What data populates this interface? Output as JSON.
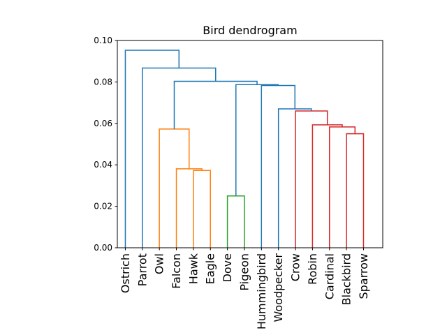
{
  "chart_data": {
    "type": "dendrogram",
    "title": "Bird dendrogram",
    "xlabel": "",
    "ylabel": "",
    "ylim": [
      0,
      0.1
    ],
    "yticks": [
      "0.00",
      "0.02",
      "0.04",
      "0.06",
      "0.08",
      "0.10"
    ],
    "grid": false,
    "leaves": [
      "Ostrich",
      "Parrot",
      "Owl",
      "Falcon",
      "Hawk",
      "Eagle",
      "Dove",
      "Pigeon",
      "Hummingbird",
      "Woodpecker",
      "Crow",
      "Robin",
      "Cardinal",
      "Blackbird",
      "Sparrow"
    ],
    "colors": {
      "above_threshold": "#1f77b4",
      "cluster_orange": "#ff7f0e",
      "cluster_green": "#2ca02c",
      "cluster_red": "#d62728"
    },
    "merges": [
      {
        "left": "Hawk",
        "right": "Eagle",
        "height": 0.0373,
        "color": "cluster_orange"
      },
      {
        "left": "Falcon",
        "right": "Hawk+Eagle",
        "height": 0.0381,
        "color": "cluster_orange"
      },
      {
        "left": "Owl",
        "right": "Falcon+Hawk+Eagle",
        "height": 0.0573,
        "color": "cluster_orange"
      },
      {
        "left": "Dove",
        "right": "Pigeon",
        "height": 0.025,
        "color": "cluster_green"
      },
      {
        "left": "Blackbird",
        "right": "Sparrow",
        "height": 0.055,
        "color": "cluster_red"
      },
      {
        "left": "Cardinal",
        "right": "Blackbird+Sparrow",
        "height": 0.0583,
        "color": "cluster_red"
      },
      {
        "left": "Robin",
        "right": "Cardinal+Blackbird+Sparrow",
        "height": 0.0593,
        "color": "cluster_red"
      },
      {
        "left": "Crow",
        "right": "Robin+Cardinal+Blackbird+Sparrow",
        "height": 0.066,
        "color": "cluster_red"
      },
      {
        "left": "Woodpecker",
        "right": "Crow cluster",
        "height": 0.067,
        "color": "above_threshold"
      },
      {
        "left": "Hummingbird",
        "right": "Woodpecker cluster",
        "height": 0.0783,
        "color": "above_threshold"
      },
      {
        "left": "Dove+Pigeon",
        "right": "Hummingbird cluster",
        "height": 0.0787,
        "color": "above_threshold"
      },
      {
        "left": "Owl cluster",
        "right": "Dove cluster",
        "height": 0.0803,
        "color": "above_threshold"
      },
      {
        "left": "Parrot",
        "right": "Owl+Dove cluster",
        "height": 0.0867,
        "color": "above_threshold"
      },
      {
        "left": "Ostrich",
        "right": "Parrot cluster",
        "height": 0.0953,
        "color": "above_threshold"
      }
    ]
  }
}
